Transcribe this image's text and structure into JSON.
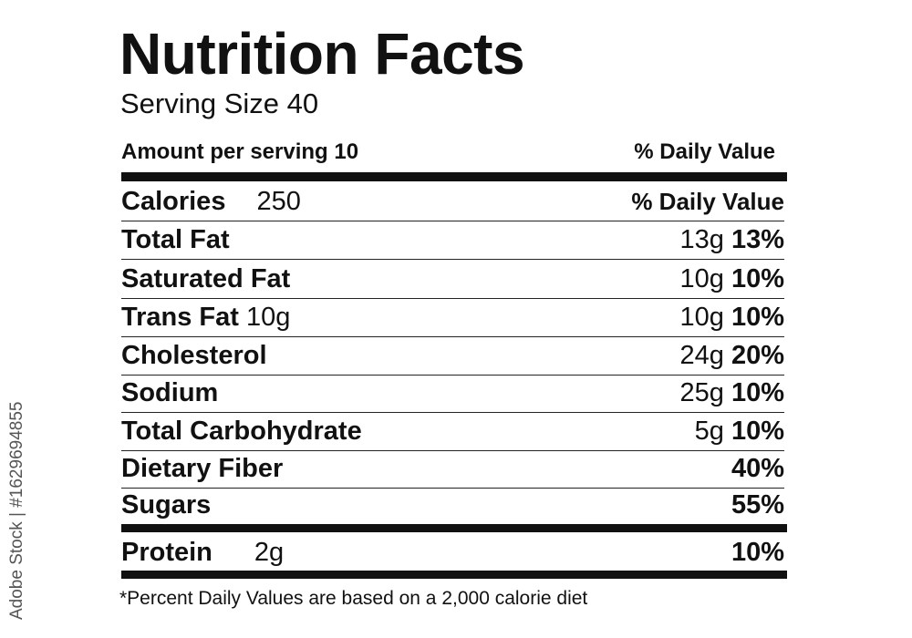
{
  "title": "Nutrition Facts",
  "serving_size": "Serving Size 40",
  "header": {
    "amount": "Amount per serving 10",
    "dv": "% Daily Value"
  },
  "calories": {
    "label": "Calories",
    "value": "250",
    "dv": "% Daily Value"
  },
  "rows": [
    {
      "label": "Total Fat",
      "inline": "",
      "amount": "13g",
      "pct": "13%"
    },
    {
      "label": "Saturated Fat",
      "inline": "",
      "amount": "10g",
      "pct": "10%"
    },
    {
      "label": "Trans Fat",
      "inline": "10g",
      "amount": "10g",
      "pct": "10%"
    },
    {
      "label": "Cholesterol",
      "inline": "",
      "amount": "24g",
      "pct": "20%"
    },
    {
      "label": "Sodium",
      "inline": "",
      "amount": "25g",
      "pct": "10%"
    },
    {
      "label": "Total Carbohydrate",
      "inline": "",
      "amount": "5g",
      "pct": "10%"
    },
    {
      "label": "Dietary Fiber",
      "inline": "",
      "amount": "",
      "pct": "40%"
    },
    {
      "label": "Sugars",
      "inline": "",
      "amount": "",
      "pct": "55%"
    }
  ],
  "protein": {
    "label": "Protein",
    "value": "2g",
    "pct": "10%"
  },
  "footnote": "*Percent Daily Values are based on a 2,000 calorie diet",
  "watermark": "Adobe Stock | #162969485​5"
}
